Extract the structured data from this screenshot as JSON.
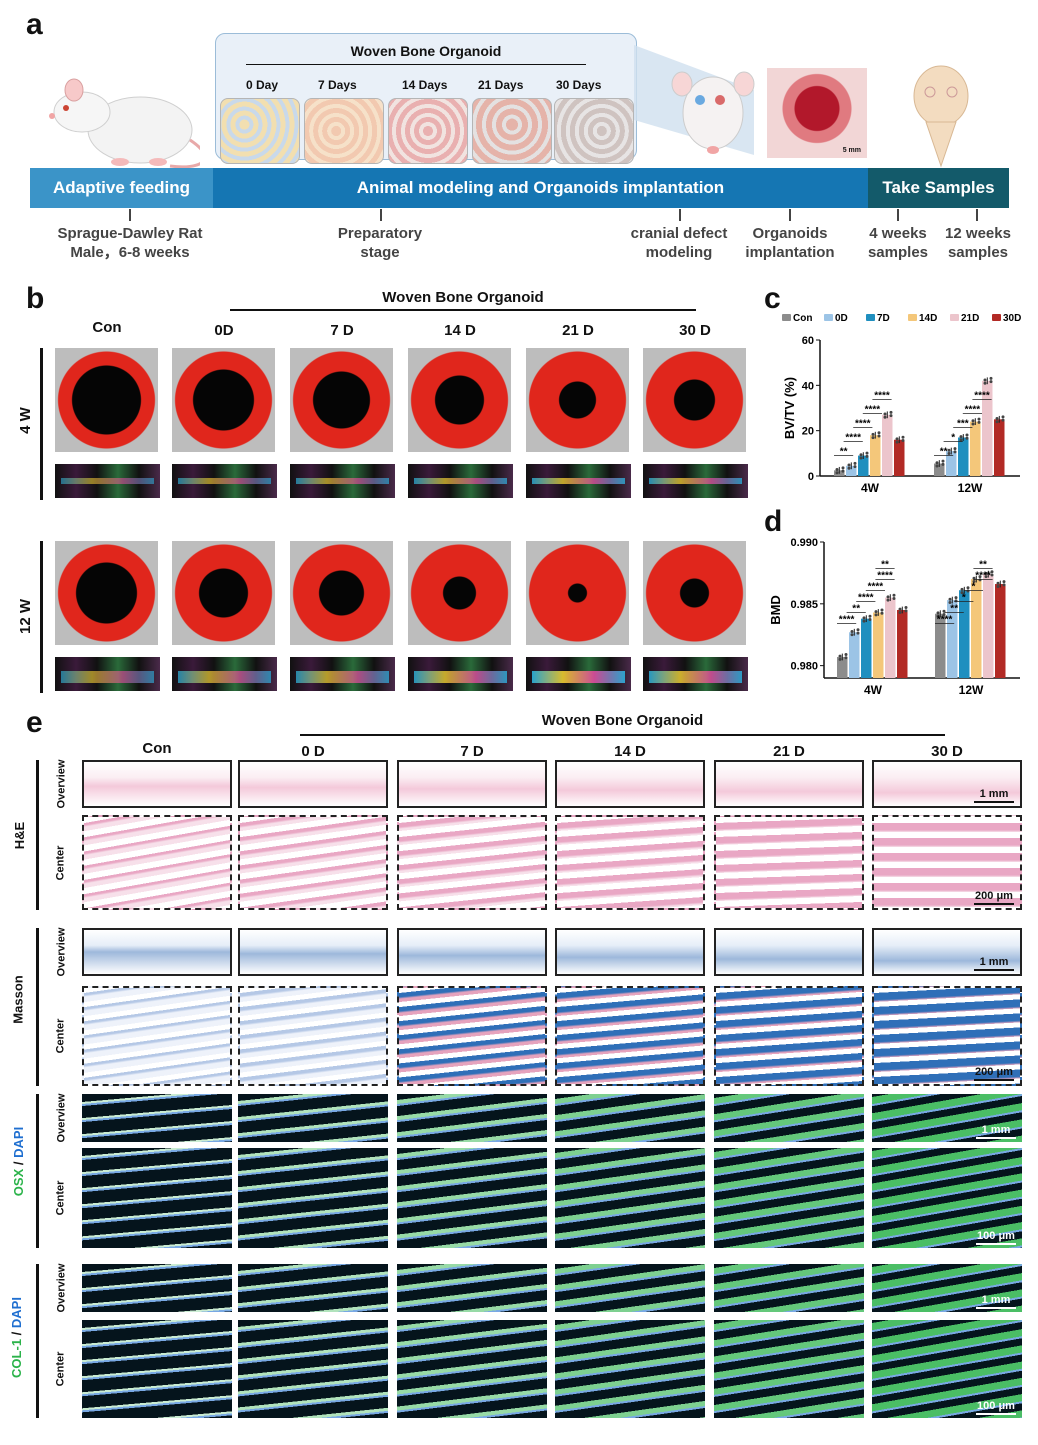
{
  "panels": {
    "a": "a",
    "b": "b",
    "c": "c",
    "d": "d",
    "e": "e"
  },
  "panel_a": {
    "organoid_title": "Woven Bone Organoid",
    "days": [
      "0 Day",
      "7 Days",
      "14 Days",
      "21 Days",
      "30 Days"
    ],
    "scale_label": "5 mm",
    "bands": [
      {
        "label": "Adaptive feeding",
        "color": "#3b94c8"
      },
      {
        "label": "Animal modeling and Organoids implantation",
        "color": "#1576b3"
      },
      {
        "label": "Take Samples",
        "color": "#135a6a"
      }
    ],
    "stages": [
      {
        "line1": "Sprague-Dawley Rat",
        "line2": "Male，6-8 weeks"
      },
      {
        "line1": "Preparatory",
        "line2": "stage"
      },
      {
        "line1": "cranial defect",
        "line2": "modeling"
      },
      {
        "line1": "Organoids",
        "line2": "implantation"
      },
      {
        "line1": "4 weeks",
        "line2": "samples"
      },
      {
        "line1": "12 weeks",
        "line2": "samples"
      }
    ]
  },
  "panel_b": {
    "group_title": "Woven Bone Organoid",
    "columns": [
      "Con",
      "0D",
      "7 D",
      "14 D",
      "21 D",
      "30 D"
    ],
    "rows": [
      "4 W",
      "12 W"
    ],
    "colors": {
      "bone": "#e0261c",
      "defect": "#050505",
      "background": "#bdbdbd"
    }
  },
  "panel_c": {
    "chart_data": {
      "type": "bar",
      "categories": [
        "4W",
        "12W"
      ],
      "series": [
        {
          "name": "Con",
          "color": "#8c8c8c",
          "values": [
            2.5,
            5.5
          ]
        },
        {
          "name": "0D",
          "color": "#9cc4e6",
          "values": [
            4.5,
            11
          ]
        },
        {
          "name": "7D",
          "color": "#1f8fbf",
          "values": [
            9,
            17
          ]
        },
        {
          "name": "14D",
          "color": "#f4c77a",
          "values": [
            18,
            24
          ]
        },
        {
          "name": "21D",
          "color": "#ecc5cc",
          "values": [
            27,
            42
          ]
        },
        {
          "name": "30D",
          "color": "#b22a25",
          "values": [
            16,
            25
          ]
        }
      ],
      "ylabel": "BV/TV (%)",
      "ylim": [
        0,
        60
      ],
      "yticks": [
        0,
        20,
        40,
        60
      ],
      "significance": [
        "**",
        "****",
        "****",
        "****",
        "****",
        "**",
        "*",
        "***",
        "****",
        "****"
      ]
    }
  },
  "panel_d": {
    "chart_data": {
      "type": "bar",
      "categories": [
        "4W",
        "12W"
      ],
      "series": [
        {
          "name": "Con",
          "color": "#8c8c8c",
          "values": [
            0.9807,
            0.9842
          ]
        },
        {
          "name": "0D",
          "color": "#9cc4e6",
          "values": [
            0.9827,
            0.9853
          ]
        },
        {
          "name": "7D",
          "color": "#1f8fbf",
          "values": [
            0.9838,
            0.9861
          ]
        },
        {
          "name": "14D",
          "color": "#f4c77a",
          "values": [
            0.9843,
            0.987
          ]
        },
        {
          "name": "21D",
          "color": "#ecc5cc",
          "values": [
            0.9855,
            0.9874
          ]
        },
        {
          "name": "30D",
          "color": "#b22a25",
          "values": [
            0.9845,
            0.9866
          ]
        }
      ],
      "ylabel": "BMD",
      "ylim": [
        0.979,
        0.99
      ],
      "yticks": [
        "0.980",
        "0.985",
        "0.990"
      ],
      "significance": [
        "****",
        "**",
        "****",
        "****",
        "****",
        "**",
        "****",
        "**",
        "*",
        "*",
        "****",
        "**"
      ]
    }
  },
  "panel_e": {
    "group_title": "Woven Bone Organoid",
    "columns": [
      "Con",
      "0 D",
      "7 D",
      "14 D",
      "21 D",
      "30 D"
    ],
    "stains": [
      {
        "name": "H&E",
        "overview": "Overview",
        "center": "Center",
        "scale_overview": "1 mm",
        "scale_center": "200 μm"
      },
      {
        "name": "Masson",
        "overview": "Overview",
        "center": "Center",
        "scale_overview": "1 mm",
        "scale_center": "200 μm"
      },
      {
        "name_a": "OSX",
        "sep": " / ",
        "name_b": "DAPI",
        "overview": "Overview",
        "center": "Center",
        "scale_overview": "1 mm",
        "scale_center": "100 μm"
      },
      {
        "name_a": "COL-1",
        "sep": " / ",
        "name_b": "DAPI",
        "overview": "Overview",
        "center": "Center",
        "scale_overview": "1 mm",
        "scale_center": "100 μm"
      }
    ],
    "colors": {
      "green": "#2bb34a",
      "blue": "#1f6fd0",
      "he": "#e9a7c4",
      "masson_blue": "#2f6fb8"
    }
  }
}
